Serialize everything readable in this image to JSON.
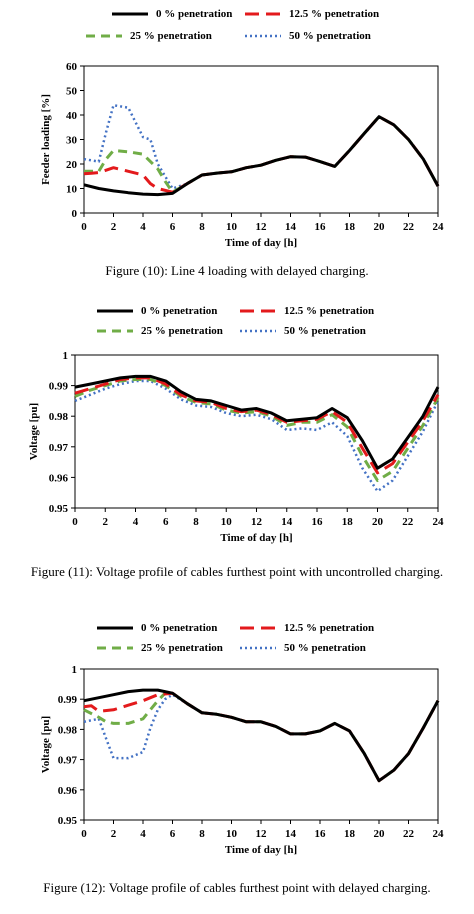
{
  "series_styles": [
    {
      "color": "#000000",
      "dash": "",
      "width": 3
    },
    {
      "color": "#e31a1c",
      "dash": "14 7",
      "width": 3
    },
    {
      "color": "#70ad47",
      "dash": "9 6",
      "width": 3
    },
    {
      "color": "#4472c4",
      "dash": "2 3",
      "width": 2.5
    }
  ],
  "chart_data": [
    {
      "type": "line",
      "legend": [
        "0 % penetration",
        "12.5 % penetration",
        "25 % penetration",
        "50 % penetration"
      ],
      "xlabel": "Time of day [h]",
      "ylabel": "Feeder loading [%]",
      "xlim": [
        0,
        24
      ],
      "ylim": [
        0,
        60
      ],
      "xticks": [
        0,
        2,
        4,
        6,
        8,
        10,
        12,
        14,
        16,
        18,
        20,
        22,
        24
      ],
      "yticks": [
        0,
        10,
        20,
        30,
        40,
        50,
        60
      ],
      "ytick_labels": [
        "0",
        "10",
        "20",
        "30",
        "40",
        "50",
        "60"
      ],
      "caption": "Figure (10):  Line 4 loading with delayed charging.",
      "series": [
        {
          "name": "0 % penetration",
          "x": [
            0,
            1,
            2,
            3,
            4,
            5,
            6,
            7,
            8,
            9,
            10,
            11,
            12,
            13,
            14,
            15,
            16,
            17,
            18,
            19,
            20,
            21,
            22,
            23,
            24
          ],
          "y": [
            11.5,
            10,
            9,
            8.3,
            7.7,
            7.5,
            8,
            12,
            15.5,
            16.3,
            16.8,
            18.5,
            19.5,
            21.5,
            23,
            22.8,
            21,
            19,
            25.5,
            32.5,
            39.3,
            36,
            30,
            22,
            11
          ]
        },
        {
          "name": "12.5 % penetration",
          "x": [
            0,
            0.5,
            1,
            2,
            3,
            4,
            4.5,
            5,
            6,
            7,
            8,
            9,
            10,
            11,
            12,
            13,
            14,
            15,
            16,
            17,
            18,
            19,
            20,
            21,
            22,
            23,
            24
          ],
          "y": [
            16,
            16.2,
            16.5,
            18.5,
            17,
            15.5,
            12,
            10,
            8.5,
            12,
            15.5,
            16.3,
            16.8,
            18.5,
            19.5,
            21.5,
            23,
            22.8,
            21,
            19,
            25.5,
            32.5,
            39.3,
            36,
            30,
            22,
            11
          ]
        },
        {
          "name": "25 % penetration",
          "x": [
            0,
            1,
            1.5,
            2,
            3,
            4,
            5,
            5.5,
            6,
            7,
            8,
            9,
            10,
            11,
            12,
            13,
            14,
            15,
            16,
            17,
            18,
            19,
            20,
            21,
            22,
            23,
            24
          ],
          "y": [
            17,
            17,
            22,
            25.5,
            25,
            24,
            18,
            13,
            8.5,
            12,
            15.5,
            16.3,
            16.8,
            18.5,
            19.5,
            21.5,
            23,
            22.8,
            21,
            19,
            25.5,
            32.5,
            39.3,
            36,
            30,
            22,
            11
          ]
        },
        {
          "name": "50 % penetration",
          "x": [
            0,
            1,
            1.5,
            2,
            3,
            4,
            4.5,
            5,
            6,
            7,
            8,
            9,
            10,
            11,
            12,
            13,
            14,
            15,
            16,
            17,
            18,
            19,
            20,
            21,
            22,
            23,
            24
          ],
          "y": [
            22,
            21,
            33,
            44,
            43,
            31,
            30,
            20,
            10,
            12,
            15.5,
            16.3,
            16.8,
            18.5,
            19.5,
            21.5,
            23,
            22.8,
            21,
            19,
            25.5,
            32.5,
            39.3,
            36,
            30,
            22,
            11
          ]
        }
      ]
    },
    {
      "type": "line",
      "legend": [
        "0 % penetration",
        "12.5 % penetration",
        "25 % penetration",
        "50 % penetration"
      ],
      "xlabel": "Time of day [h]",
      "ylabel": "Voltage [pu]",
      "xlim": [
        0,
        24
      ],
      "ylim": [
        0.95,
        1
      ],
      "xticks": [
        0,
        2,
        4,
        6,
        8,
        10,
        12,
        14,
        16,
        18,
        20,
        22,
        24
      ],
      "yticks": [
        0.95,
        0.96,
        0.97,
        0.98,
        0.99,
        1
      ],
      "ytick_labels": [
        "0.95",
        "0.96",
        "0.97",
        "0.98",
        "0.99",
        "1"
      ],
      "caption": "Figure (11):  Voltage profile of cables furthest point with uncontrolled charging.",
      "series": [
        {
          "name": "0 % penetration",
          "x": [
            0,
            1,
            2,
            3,
            4,
            5,
            6,
            7,
            8,
            9,
            10,
            11,
            12,
            13,
            14,
            15,
            16,
            17,
            18,
            19,
            20,
            21,
            22,
            23,
            24
          ],
          "y": [
            0.9895,
            0.9905,
            0.9915,
            0.9925,
            0.993,
            0.993,
            0.9915,
            0.988,
            0.9855,
            0.985,
            0.9835,
            0.982,
            0.9825,
            0.981,
            0.9785,
            0.979,
            0.9795,
            0.9825,
            0.9795,
            0.972,
            0.963,
            0.966,
            0.973,
            0.98,
            0.9895
          ]
        },
        {
          "name": "12.5 % penetration",
          "x": [
            0,
            1,
            2,
            3,
            4,
            5,
            6,
            7,
            8,
            9,
            10,
            11,
            12,
            13,
            14,
            15,
            16,
            17,
            18,
            19,
            20,
            21,
            22,
            23,
            24
          ],
          "y": [
            0.9875,
            0.989,
            0.9905,
            0.992,
            0.9925,
            0.9925,
            0.9905,
            0.987,
            0.985,
            0.9845,
            0.9825,
            0.9815,
            0.982,
            0.9805,
            0.978,
            0.9785,
            0.979,
            0.9815,
            0.978,
            0.9695,
            0.9615,
            0.9645,
            0.9715,
            0.9785,
            0.987
          ]
        },
        {
          "name": "25 % penetration",
          "x": [
            0,
            1,
            2,
            3,
            4,
            5,
            6,
            7,
            8,
            9,
            10,
            11,
            12,
            13,
            14,
            15,
            16,
            17,
            18,
            19,
            20,
            21,
            22,
            23,
            24
          ],
          "y": [
            0.9865,
            0.9885,
            0.99,
            0.9915,
            0.992,
            0.992,
            0.99,
            0.9865,
            0.9845,
            0.984,
            0.982,
            0.981,
            0.9815,
            0.98,
            0.977,
            0.978,
            0.978,
            0.9805,
            0.9765,
            0.967,
            0.959,
            0.962,
            0.9695,
            0.977,
            0.986
          ]
        },
        {
          "name": "50 % penetration",
          "x": [
            0,
            1,
            2,
            3,
            4,
            5,
            6,
            7,
            8,
            9,
            10,
            11,
            12,
            13,
            14,
            15,
            16,
            17,
            18,
            19,
            20,
            21,
            22,
            23,
            24
          ],
          "y": [
            0.985,
            0.987,
            0.989,
            0.9905,
            0.9915,
            0.9915,
            0.989,
            0.9855,
            0.9835,
            0.983,
            0.981,
            0.98,
            0.9805,
            0.979,
            0.9755,
            0.976,
            0.9755,
            0.978,
            0.9735,
            0.963,
            0.9555,
            0.959,
            0.967,
            0.975,
            0.985
          ]
        }
      ]
    },
    {
      "type": "line",
      "legend": [
        "0 % penetration",
        "12.5 % penetration",
        "25 % penetration",
        "50 % penetration"
      ],
      "xlabel": "Time of day [h]",
      "ylabel": "Voltage [pu]",
      "xlim": [
        0,
        24
      ],
      "ylim": [
        0.95,
        1
      ],
      "xticks": [
        0,
        2,
        4,
        6,
        8,
        10,
        12,
        14,
        16,
        18,
        20,
        22,
        24
      ],
      "yticks": [
        0.95,
        0.96,
        0.97,
        0.98,
        0.99,
        1
      ],
      "ytick_labels": [
        "0.95",
        "0.96",
        "0.97",
        "0.98",
        "0.99",
        "1"
      ],
      "caption": "Figure (12):  Voltage profile of cables furthest point with delayed charging.",
      "series": [
        {
          "name": "0 % penetration",
          "x": [
            0,
            1,
            2,
            3,
            4,
            5,
            6,
            7,
            8,
            9,
            10,
            11,
            12,
            13,
            14,
            15,
            16,
            17,
            18,
            19,
            20,
            21,
            22,
            23,
            24
          ],
          "y": [
            0.9895,
            0.9905,
            0.9915,
            0.9925,
            0.993,
            0.993,
            0.992,
            0.9885,
            0.9855,
            0.985,
            0.984,
            0.9825,
            0.9825,
            0.981,
            0.9785,
            0.9785,
            0.9795,
            0.982,
            0.9795,
            0.972,
            0.963,
            0.9665,
            0.972,
            0.9805,
            0.9895
          ]
        },
        {
          "name": "12.5 % penetration",
          "x": [
            0,
            0.5,
            1,
            2,
            3,
            4,
            4.5,
            5,
            6,
            7,
            8,
            9,
            10,
            11,
            12,
            13,
            14,
            15,
            16,
            17,
            18,
            19,
            20,
            21,
            22,
            23,
            24
          ],
          "y": [
            0.9875,
            0.9878,
            0.986,
            0.9865,
            0.988,
            0.9895,
            0.9905,
            0.9915,
            0.992,
            0.9885,
            0.9855,
            0.985,
            0.984,
            0.9825,
            0.9825,
            0.981,
            0.9785,
            0.9785,
            0.9795,
            0.982,
            0.9795,
            0.972,
            0.963,
            0.9665,
            0.972,
            0.9805,
            0.9895
          ]
        },
        {
          "name": "25 % penetration",
          "x": [
            0,
            1,
            1.5,
            2,
            3,
            4,
            5,
            5.5,
            6,
            7,
            8,
            9,
            10,
            11,
            12,
            13,
            14,
            15,
            16,
            17,
            18,
            19,
            20,
            21,
            22,
            23,
            24
          ],
          "y": [
            0.9865,
            0.984,
            0.9825,
            0.982,
            0.982,
            0.9835,
            0.9895,
            0.992,
            0.992,
            0.9885,
            0.9855,
            0.985,
            0.984,
            0.9825,
            0.9825,
            0.981,
            0.9785,
            0.9785,
            0.9795,
            0.982,
            0.9795,
            0.972,
            0.963,
            0.9665,
            0.972,
            0.9805,
            0.9895
          ]
        },
        {
          "name": "50 % penetration",
          "x": [
            0,
            1,
            1.5,
            2,
            3,
            4,
            4.5,
            5,
            5.5,
            6,
            7,
            8,
            9,
            10,
            11,
            12,
            13,
            14,
            15,
            16,
            17,
            18,
            19,
            20,
            21,
            22,
            23,
            24
          ],
          "y": [
            0.9825,
            0.9835,
            0.977,
            0.9705,
            0.9705,
            0.9725,
            0.9805,
            0.9865,
            0.99,
            0.9915,
            0.9885,
            0.9855,
            0.985,
            0.984,
            0.9825,
            0.9825,
            0.981,
            0.9785,
            0.9785,
            0.9795,
            0.982,
            0.9795,
            0.972,
            0.963,
            0.9665,
            0.972,
            0.9805,
            0.9895
          ]
        }
      ]
    }
  ]
}
